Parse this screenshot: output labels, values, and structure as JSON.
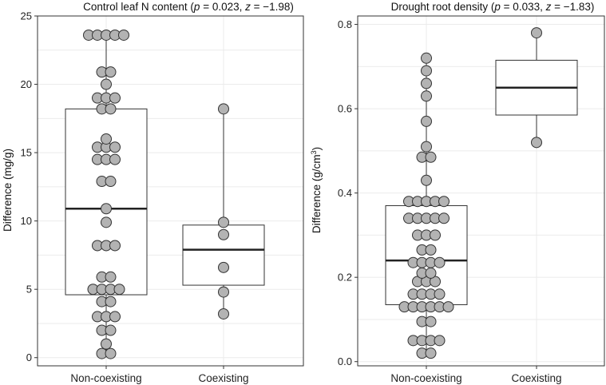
{
  "chart_data": [
    {
      "type": "boxplot",
      "title_prefix": "Control leaf N content (",
      "p_label": "p",
      "p_value": " = 0.023, ",
      "z_label": "z",
      "z_value": " = −1.98)",
      "ylabel": "Difference (mg/g)",
      "ylim": [
        -0.6,
        25
      ],
      "yticks": [
        "0",
        "5",
        "10",
        "15",
        "20",
        "25"
      ],
      "categories": [
        "Non-coexisting",
        "Coexisting"
      ],
      "boxes": [
        {
          "q1": 4.6,
          "median": 10.9,
          "q3": 18.2,
          "whisker_low": 0.3,
          "whisker_high": 23.6
        },
        {
          "q1": 5.3,
          "median": 7.9,
          "q3": 9.7,
          "whisker_low": 3.2,
          "whisker_high": 18.2
        }
      ],
      "points": [
        [
          0.3,
          0.3,
          1.0,
          2.0,
          2.0,
          3.0,
          3.0,
          3.0,
          4.1,
          4.1,
          5.0,
          5.0,
          5.0,
          5.0,
          5.9,
          5.9,
          8.2,
          8.2,
          8.2,
          9.9,
          10.9,
          12.9,
          12.9,
          14.5,
          14.5,
          14.5,
          15.4,
          15.4,
          15.4,
          16.0,
          18.2,
          18.2,
          19.0,
          19.0,
          19.0,
          20.0,
          20.9,
          20.9,
          23.6,
          23.6,
          23.6,
          23.6,
          23.6
        ],
        [
          3.2,
          4.8,
          6.6,
          9.0,
          9.9,
          18.2
        ]
      ]
    },
    {
      "type": "boxplot",
      "title_prefix": "Drought root density (",
      "p_label": "p",
      "p_value": " = 0.033, ",
      "z_label": "z",
      "z_value": " = −1.83)",
      "ylabel_prefix": "Difference (g/cm",
      "ylabel_sup": "3",
      "ylabel_suffix": ")",
      "ylim": [
        -0.01,
        0.82
      ],
      "yticks": [
        "0.0",
        "0.2",
        "0.4",
        "0.6",
        "0.8"
      ],
      "categories": [
        "Non-coexisting",
        "Coexisting"
      ],
      "boxes": [
        {
          "q1": 0.135,
          "median": 0.24,
          "q3": 0.37,
          "whisker_low": 0.02,
          "whisker_high": 0.72
        },
        {
          "q1": 0.585,
          "median": 0.65,
          "q3": 0.715,
          "whisker_low": 0.52,
          "whisker_high": 0.78
        }
      ],
      "points": [
        [
          0.02,
          0.02,
          0.05,
          0.05,
          0.05,
          0.05,
          0.095,
          0.095,
          0.13,
          0.13,
          0.13,
          0.13,
          0.13,
          0.13,
          0.16,
          0.16,
          0.16,
          0.16,
          0.19,
          0.19,
          0.19,
          0.21,
          0.21,
          0.235,
          0.235,
          0.235,
          0.235,
          0.265,
          0.265,
          0.3,
          0.3,
          0.3,
          0.34,
          0.34,
          0.34,
          0.34,
          0.34,
          0.38,
          0.38,
          0.38,
          0.38,
          0.38,
          0.43,
          0.485,
          0.485,
          0.51,
          0.57,
          0.63,
          0.66,
          0.69,
          0.72
        ],
        [
          0.52,
          0.78
        ]
      ]
    }
  ]
}
